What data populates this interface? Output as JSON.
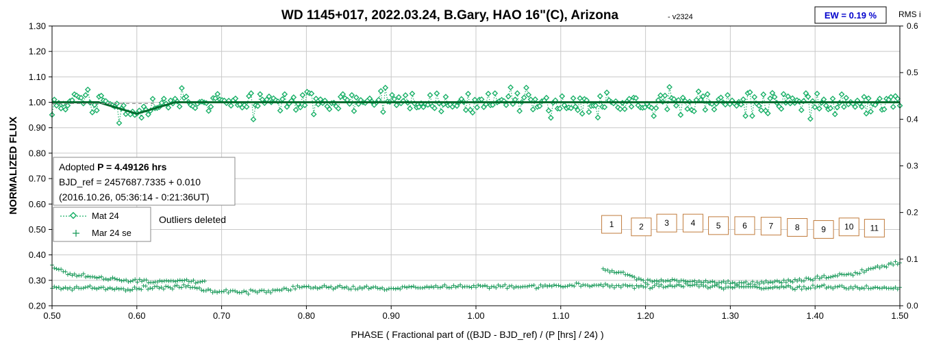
{
  "chart_data": {
    "type": "scatter",
    "title": "WD 1145+017, 2022.03.24, B.Gary, HAO 16\"(C), Arizona",
    "version": "- v2324",
    "xlabel": "PHASE ( Fractional part of ((BJD - BJD_ref) / (P [hrs] / 24) )",
    "ylabel": "NORMALIZED FLUX",
    "ylabel_right": "RMS i",
    "xlim": [
      0.5,
      1.5
    ],
    "ylim": [
      0.2,
      1.3
    ],
    "ylim_right": [
      0.0,
      0.6
    ],
    "x_ticks": [
      "0.50",
      "0.60",
      "0.70",
      "0.80",
      "0.90",
      "1.00",
      "1.10",
      "1.20",
      "1.30",
      "1.40",
      "1.50"
    ],
    "y_ticks": [
      "0.20",
      "0.30",
      "0.40",
      "0.50",
      "0.60",
      "0.70",
      "0.80",
      "0.90",
      "1.00",
      "1.10",
      "1.20",
      "1.30"
    ],
    "y_ticks_right": [
      "0.0",
      "0.1",
      "0.2",
      "0.3",
      "0.4",
      "0.5",
      "0.6"
    ],
    "grid": true,
    "ew_label": "EW = 0.19 %",
    "info_box": {
      "line1_prefix": "Adopted ",
      "line1_bold": "P = 4.49126 hrs",
      "line2": "BJD_ref = 2457687.7335 + 0.010",
      "line3": "(2016.10.26, 05:36:14 - 0:21:36UT)"
    },
    "legend": [
      {
        "label": "Mat 24",
        "marker": "diamond",
        "line": "dotted"
      },
      {
        "label": "Mar 24 se",
        "marker": "plus",
        "line": "none"
      }
    ],
    "outlier_note": "Outliers deleted",
    "model_level": 1.0,
    "dip": {
      "center": 0.6,
      "start": 0.555,
      "end": 0.645,
      "depth": 0.045
    },
    "ref_dashed": {
      "x_start": 0.5,
      "x_end": 0.62,
      "y": 0.995
    },
    "boxes": [
      {
        "label": "1",
        "x": 1.16,
        "y": 0.52
      },
      {
        "label": "2",
        "x": 1.195,
        "y": 0.51
      },
      {
        "label": "3",
        "x": 1.225,
        "y": 0.525
      },
      {
        "label": "4",
        "x": 1.256,
        "y": 0.525
      },
      {
        "label": "5",
        "x": 1.286,
        "y": 0.515
      },
      {
        "label": "6",
        "x": 1.317,
        "y": 0.515
      },
      {
        "label": "7",
        "x": 1.348,
        "y": 0.513
      },
      {
        "label": "8",
        "x": 1.379,
        "y": 0.508
      },
      {
        "label": "9",
        "x": 1.41,
        "y": 0.5
      },
      {
        "label": "10",
        "x": 1.44,
        "y": 0.51
      },
      {
        "label": "11",
        "x": 1.47,
        "y": 0.505
      }
    ],
    "series": [
      {
        "name": "Mat 24",
        "style": "diamond-dotted",
        "x_start": 0.5,
        "x_end": 1.5,
        "n": 380,
        "seed": 11,
        "center": 1.0,
        "noise": 0.045
      },
      {
        "name": "Mar 24 se",
        "style": "plus",
        "segments": [
          {
            "x": [
              0.5,
              0.52,
              0.55,
              0.58,
              0.62,
              0.66,
              0.7,
              0.75,
              0.8,
              0.85,
              0.9,
              0.95,
              1.0,
              1.05,
              1.1,
              1.15,
              1.2,
              1.25,
              1.3,
              1.35,
              1.4,
              1.45,
              1.5
            ],
            "y": [
              0.27,
              0.27,
              0.27,
              0.265,
              0.27,
              0.275,
              0.255,
              0.255,
              0.275,
              0.27,
              0.27,
              0.275,
              0.275,
              0.275,
              0.28,
              0.28,
              0.275,
              0.28,
              0.275,
              0.27,
              0.275,
              0.27,
              0.27
            ]
          },
          {
            "x": [
              0.5,
              0.52,
              0.55,
              0.58,
              0.62,
              0.66,
              0.68
            ],
            "y": [
              0.36,
              0.325,
              0.315,
              0.3,
              0.295,
              0.3,
              0.29
            ]
          },
          {
            "x": [
              1.15,
              1.17,
              1.2,
              1.25,
              1.3,
              1.35,
              1.4,
              1.45,
              1.5
            ],
            "y": [
              0.34,
              0.33,
              0.3,
              0.295,
              0.29,
              0.29,
              0.305,
              0.33,
              0.37
            ]
          }
        ]
      }
    ]
  },
  "colors": {
    "series1": "#1ab068",
    "series2": "#1a9a5a",
    "model": "#006b2e",
    "grid": "#c8c8c8",
    "box_border": "#c07a3a",
    "ew_border": "#000000",
    "ew_text": "#0000cc"
  }
}
